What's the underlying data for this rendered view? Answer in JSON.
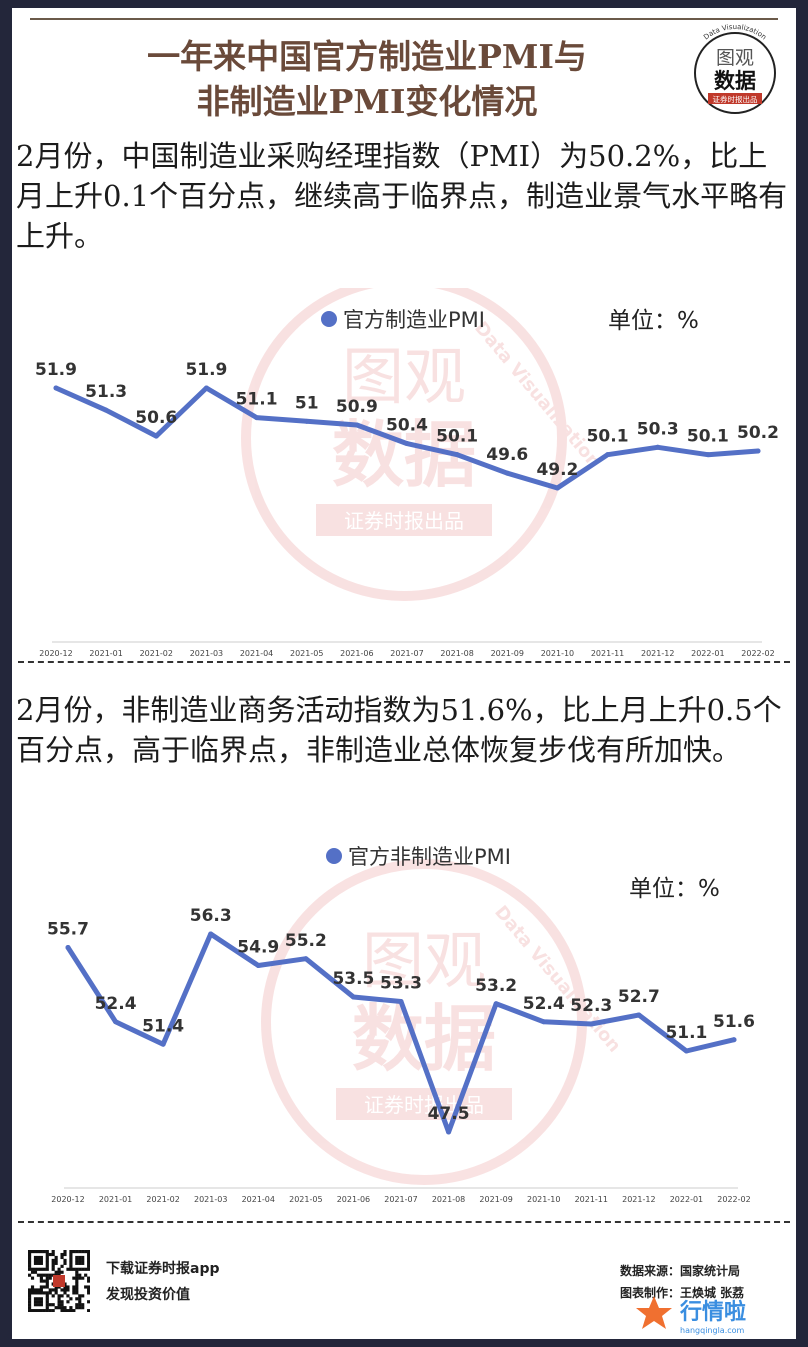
{
  "header": {
    "title_line1": "一年来中国官方制造业PMI与",
    "title_line2": "非制造业PMI变化情况"
  },
  "logo": {
    "line1": "图观",
    "line2": "数据",
    "ring_text": "Data Visualization",
    "tagline": "证券时报出品"
  },
  "sections": {
    "manufacturing_desc": "2月份，中国制造业采购经理指数（PMI）为50.2%，比上月上升0.1个百分点，继续高于临界点，制造业景气水平略有上升。",
    "nonmanufacturing_desc": "2月份，非制造业商务活动指数为51.6%，比上月上升0.5个百分点，高于临界点，非制造业总体恢复步伐有所加快。"
  },
  "chart_data": [
    {
      "type": "line",
      "legend": "官方制造业PMI",
      "unit": "单位：%",
      "x": [
        "2020-12",
        "2021-01",
        "2021-02",
        "2021-03",
        "2021-04",
        "2021-05",
        "2021-06",
        "2021-07",
        "2021-08",
        "2021-09",
        "2021-10",
        "2021-11",
        "2021-12",
        "2022-01",
        "2022-02"
      ],
      "series": [
        {
          "name": "官方制造业PMI",
          "values": [
            51.9,
            51.3,
            50.6,
            51.9,
            51.1,
            51,
            50.9,
            50.4,
            50.1,
            49.6,
            49.2,
            50.1,
            50.3,
            50.1,
            50.2
          ]
        }
      ],
      "color": "#5470c6",
      "legend_position": "top-center",
      "grid": false
    },
    {
      "type": "line",
      "legend": "官方非制造业PMI",
      "unit": "单位：%",
      "x": [
        "2020-12",
        "2021-01",
        "2021-02",
        "2021-03",
        "2021-04",
        "2021-05",
        "2021-06",
        "2021-07",
        "2021-08",
        "2021-09",
        "2021-10",
        "2021-11",
        "2021-12",
        "2022-01",
        "2022-02"
      ],
      "series": [
        {
          "name": "官方非制造业PMI",
          "values": [
            55.7,
            52.4,
            51.4,
            56.3,
            54.9,
            55.2,
            53.5,
            53.3,
            47.5,
            53.2,
            52.4,
            52.3,
            52.7,
            51.1,
            51.6
          ]
        }
      ],
      "color": "#5470c6",
      "legend_position": "top-center",
      "grid": false
    }
  ],
  "footer": {
    "download": "下载证券时报app",
    "slogan": "发现投资价值",
    "source": "数据来源：国家统计局",
    "credit": "图表制作：王焕城 张荔",
    "watermark": "行情啦",
    "watermark_url": "hangqingla.com"
  }
}
